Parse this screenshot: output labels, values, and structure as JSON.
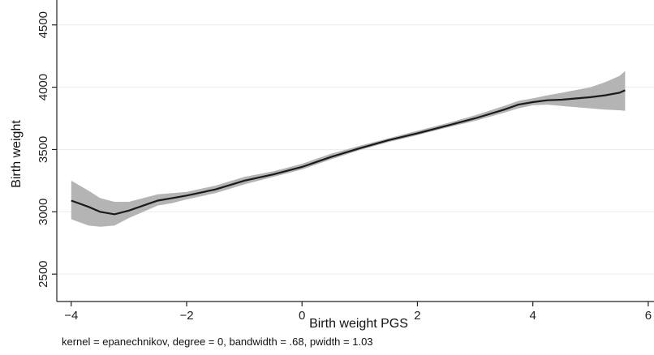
{
  "chart_data": {
    "type": "line",
    "xlabel": "Birth weight PGS",
    "ylabel": "Birth weight",
    "note": "kernel = epanechnikov, degree = 0, bandwidth = .68, pwidth = 1.03",
    "xlim": [
      -4.25,
      6.1
    ],
    "ylim": [
      2280,
      4700
    ],
    "x_ticks": [
      -4,
      -2,
      0,
      2,
      4,
      6
    ],
    "y_ticks": [
      2500,
      3000,
      3500,
      4000,
      4500
    ],
    "grid": true,
    "colors": {
      "line": "#1a1a1a",
      "band": "#b4b4b4",
      "grid": "#ececec",
      "axis": "#222222"
    },
    "series": [
      {
        "x": [
          -4.0,
          -3.7,
          -3.5,
          -3.25,
          -3.0,
          -2.75,
          -2.5,
          -2.25,
          -2.0,
          -1.5,
          -1.0,
          -0.5,
          0.0,
          0.5,
          1.0,
          1.5,
          2.0,
          2.5,
          3.0,
          3.5,
          3.75,
          4.0,
          4.25,
          4.5,
          5.0,
          5.25,
          5.5,
          5.6
        ],
        "y": [
          3090,
          3040,
          3000,
          2980,
          3010,
          3050,
          3090,
          3110,
          3130,
          3180,
          3250,
          3300,
          3360,
          3440,
          3510,
          3575,
          3630,
          3690,
          3750,
          3820,
          3860,
          3880,
          3895,
          3900,
          3920,
          3935,
          3955,
          3975
        ],
        "ci_low": [
          2940,
          2890,
          2880,
          2890,
          2950,
          3000,
          3050,
          3070,
          3100,
          3150,
          3220,
          3280,
          3340,
          3420,
          3495,
          3560,
          3615,
          3675,
          3730,
          3795,
          3830,
          3855,
          3860,
          3850,
          3830,
          3820,
          3815,
          3810
        ],
        "ci_high": [
          3250,
          3170,
          3110,
          3080,
          3080,
          3110,
          3140,
          3150,
          3160,
          3210,
          3280,
          3325,
          3385,
          3465,
          3530,
          3590,
          3650,
          3710,
          3775,
          3850,
          3890,
          3910,
          3935,
          3955,
          4000,
          4040,
          4090,
          4130
        ]
      }
    ]
  }
}
